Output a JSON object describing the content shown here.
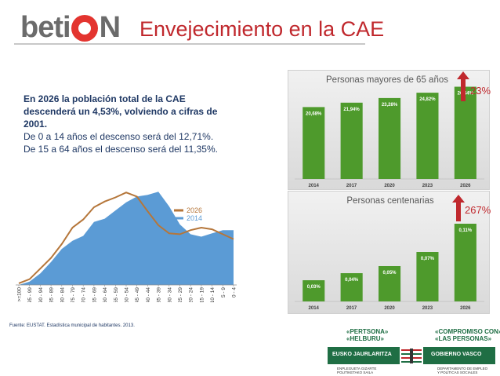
{
  "header": {
    "logo_left": "beti",
    "logo_right": "N",
    "title": "Envejecimiento en la CAE"
  },
  "summary": {
    "line1": "En 2026 la población total de la CAE",
    "line2": "descenderá un 4,53%, volviendo a cifras de",
    "line3": "2001.",
    "line4": "De 0 a 14 años el descenso será del 12,71%.",
    "line5": "De 15 a 64 años el descenso será del 11,35%."
  },
  "chart_data": [
    {
      "type": "area",
      "categories": [
        ">=100",
        "95 - 99",
        "90 - 94",
        "85 - 89",
        "80 - 84",
        "75 - 79",
        "70 - 74",
        "65 - 69",
        "60 - 64",
        "55 - 59",
        "50 - 54",
        "45 - 49",
        "40 - 44",
        "35 - 39",
        "30 - 34",
        "25 - 29",
        "20 - 24",
        "15 - 19",
        "10 - 14",
        "5 - 9",
        "0 - 4"
      ],
      "series": [
        {
          "name": "2026",
          "style": "line",
          "color": "#b5763a",
          "values": [
            2,
            7,
            20,
            33,
            50,
            70,
            80,
            95,
            102,
            107,
            113,
            108,
            90,
            73,
            63,
            62,
            67,
            70,
            68,
            62,
            56
          ]
        },
        {
          "name": "2014",
          "style": "area",
          "color": "#5b9bd5",
          "values": [
            0,
            4,
            14,
            28,
            44,
            54,
            60,
            77,
            81,
            91,
            101,
            108,
            110,
            114,
            96,
            74,
            62,
            59,
            63,
            67,
            67
          ]
        }
      ],
      "legend_position": "right",
      "grid": false
    },
    {
      "type": "bar",
      "title": "Personas mayores de 65 años",
      "categories": [
        "2014",
        "2017",
        "2020",
        "2023",
        "2026"
      ],
      "values": [
        20.68,
        21.94,
        23.28,
        24.82,
        26.54
      ],
      "labels": [
        "20,68%",
        "21,94%",
        "23,28%",
        "24,82%",
        "26,54%"
      ],
      "ylim": [
        0,
        28
      ],
      "color": "#4e9a2c",
      "grid": false
    },
    {
      "type": "bar",
      "title": "Personas centenarias",
      "categories": [
        "2014",
        "2017",
        "2020",
        "2023",
        "2026"
      ],
      "values": [
        0.03,
        0.04,
        0.05,
        0.07,
        0.11
      ],
      "labels": [
        "0,03%",
        "0,04%",
        "0,05%",
        "0,07%",
        "0,11%"
      ],
      "ylim": [
        0,
        0.12
      ],
      "color": "#4e9a2c",
      "grid": false
    }
  ],
  "growth": {
    "seniors_pct": "23%",
    "centenarians_pct": "267%",
    "arrow_color": "#c0282d"
  },
  "footer": {
    "source": "Fuente: EUSTAT. Estadística municipal de habitantes. 2013.",
    "slogan_left_1": "«PERTSONA»",
    "slogan_left_2": "«HELBURU»",
    "slogan_right_1": "«COMPROMISO CON»",
    "slogan_right_2": "«LAS PERSONAS»",
    "bar_left": "EUSKO JAURLARITZA",
    "bar_right": "GOBIERNO VASCO",
    "dept_left_1": "ENPLEGUETA GIZARTE",
    "dept_left_2": "POLITIKETAKO SAILA",
    "dept_right_1": "DEPARTAMENTO DE EMPLEO",
    "dept_right_2": "Y POLÍTICAS SOCIALES"
  }
}
